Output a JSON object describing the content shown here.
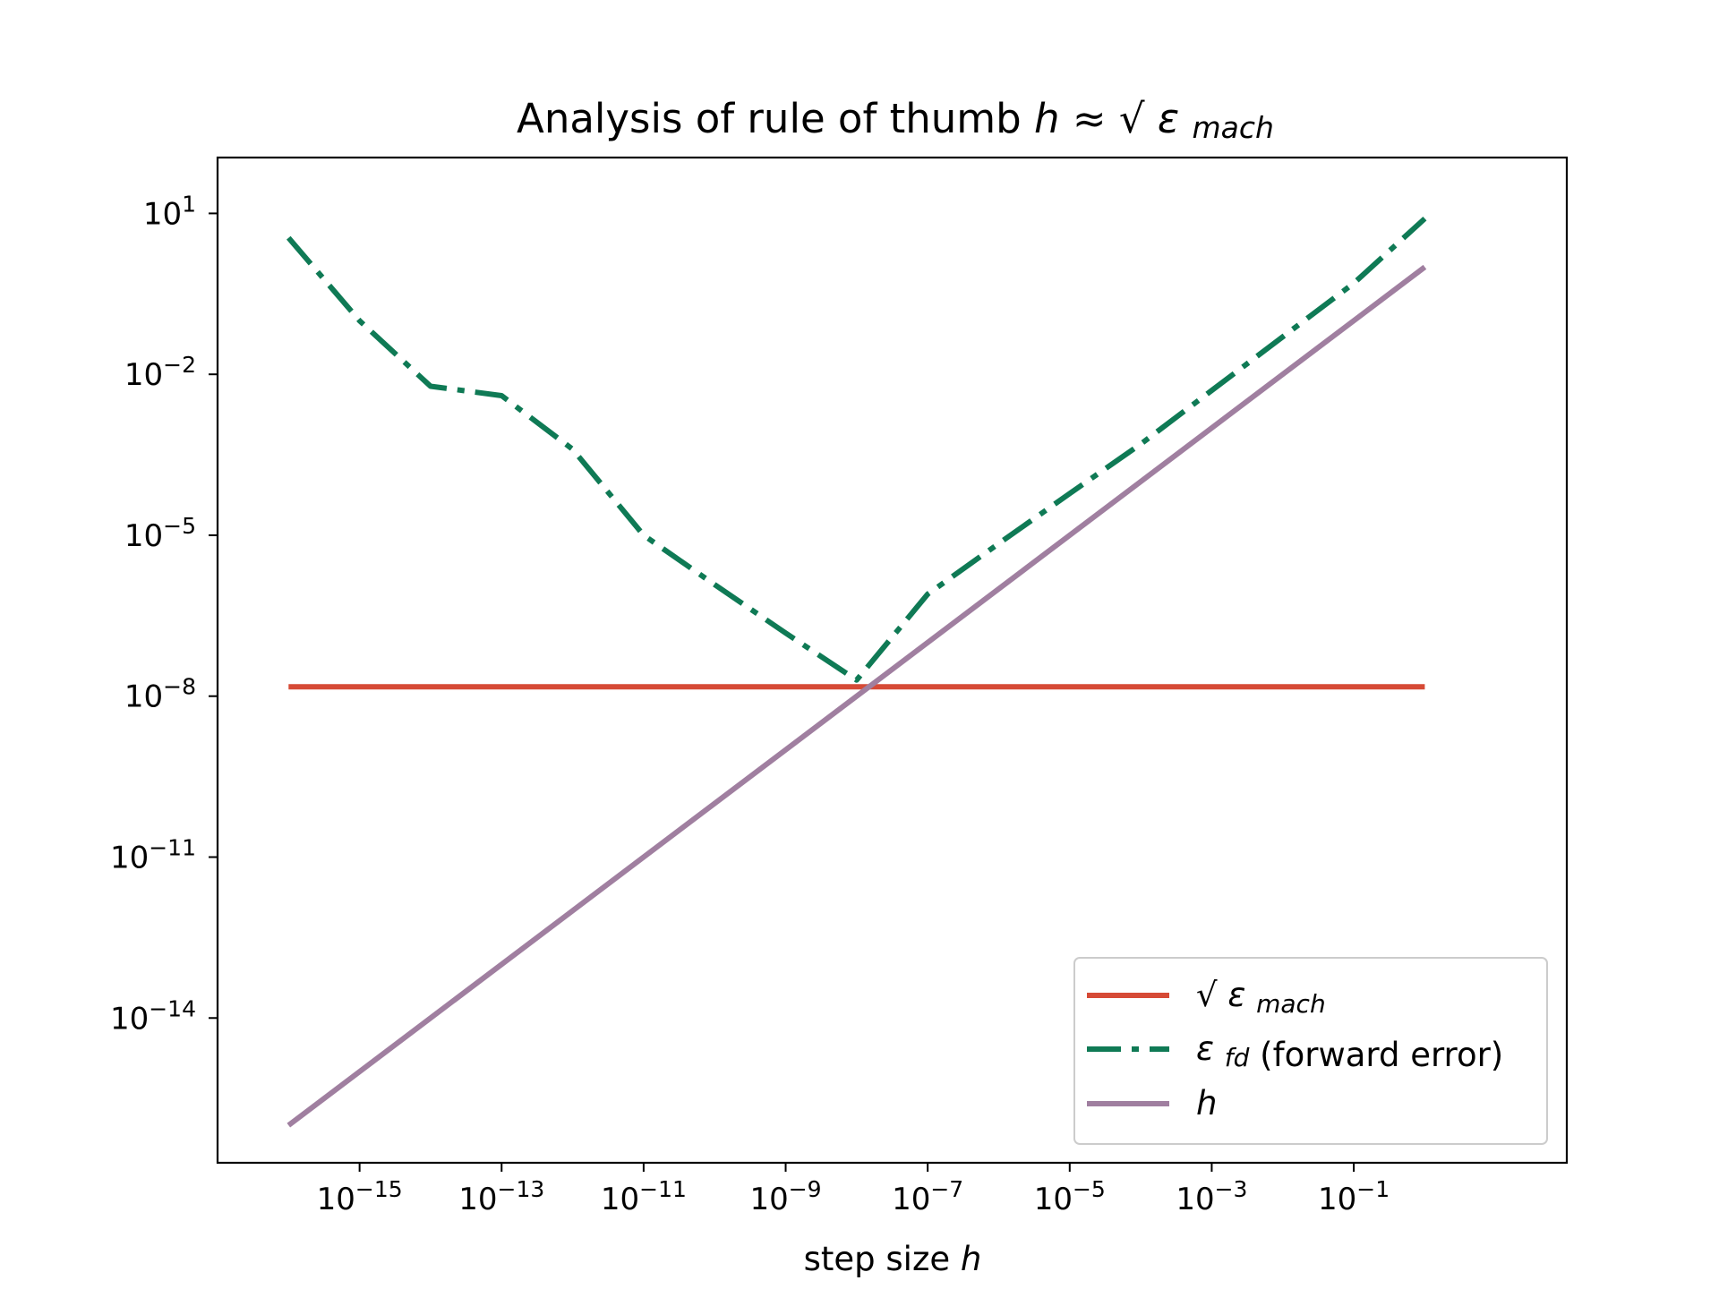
{
  "chart_data": {
    "type": "line",
    "title": {
      "prefix": "Analysis of rule of thumb",
      "var": "h",
      "approx": "≈",
      "sqrt": "√",
      "eps": "ε",
      "sub": "mach"
    },
    "xlabel": {
      "text": "step size",
      "var": "h"
    },
    "ylabel": "",
    "xscale": "log",
    "yscale": "log",
    "xlim": [
      1e-17,
      100
    ],
    "ylim": [
      2e-17,
      110
    ],
    "x_ticks": [
      {
        "base": "10",
        "exp": "−15",
        "value": 1e-15
      },
      {
        "base": "10",
        "exp": "−13",
        "value": 1e-13
      },
      {
        "base": "10",
        "exp": "−11",
        "value": 1e-11
      },
      {
        "base": "10",
        "exp": "−9",
        "value": 1e-09
      },
      {
        "base": "10",
        "exp": "−7",
        "value": 1e-07
      },
      {
        "base": "10",
        "exp": "−5",
        "value": 1e-05
      },
      {
        "base": "10",
        "exp": "−3",
        "value": 0.001
      },
      {
        "base": "10",
        "exp": "−1",
        "value": 0.1
      }
    ],
    "y_ticks": [
      {
        "base": "10",
        "exp": "1",
        "value": 10
      },
      {
        "base": "10",
        "exp": "−2",
        "value": 0.01
      },
      {
        "base": "10",
        "exp": "−5",
        "value": 1e-05
      },
      {
        "base": "10",
        "exp": "−8",
        "value": 1e-08
      },
      {
        "base": "10",
        "exp": "−11",
        "value": 1e-11
      },
      {
        "base": "10",
        "exp": "−14",
        "value": 1e-14
      }
    ],
    "grid": false,
    "legend_position": "lower-right",
    "series": [
      {
        "name": "sqrt_eps_mach",
        "legend": {
          "sqrt": "√",
          "eps": "ε",
          "sub": "mach",
          "suffix": ""
        },
        "color": "#d64a36",
        "style": "solid",
        "x": [
          1e-16,
          1
        ],
        "y": [
          1.49e-08,
          1.49e-08
        ]
      },
      {
        "name": "eps_fd",
        "legend": {
          "sqrt": "",
          "eps": "ε",
          "sub": "fd",
          "suffix": "(forward error)"
        },
        "color": "#0f7a55",
        "style": "dashdot",
        "x": [
          1e-16,
          1e-15,
          1e-14,
          1e-13,
          1e-12,
          1e-11,
          1e-10,
          1e-09,
          1e-08,
          1e-07,
          1e-06,
          1e-05,
          0.0001,
          0.001,
          0.01,
          0.1,
          1
        ],
        "y": [
          3.5,
          0.1,
          0.006,
          0.004,
          0.0004,
          1e-05,
          1.2e-06,
          1.5e-07,
          2e-08,
          8e-07,
          7e-06,
          6e-05,
          0.0005,
          0.005,
          0.05,
          0.5,
          8
        ]
      },
      {
        "name": "h",
        "legend": {
          "sqrt": "",
          "eps": "",
          "sub": "",
          "suffix": "",
          "var": "h"
        },
        "color": "#a07fa0",
        "style": "solid",
        "x": [
          1e-16,
          1
        ],
        "y": [
          1e-16,
          1
        ]
      }
    ]
  }
}
